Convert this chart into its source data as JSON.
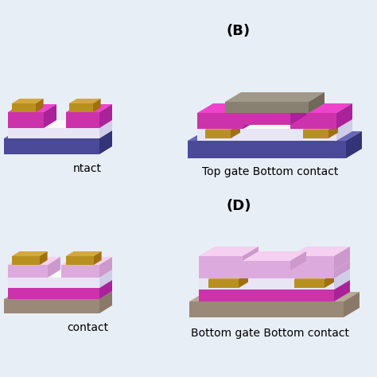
{
  "bg_color": "#e8eef5",
  "title_B": "(B)",
  "title_D": "(D)",
  "label_B": "Top gate Bottom contact",
  "label_D": "Bottom gate Bottom contact",
  "label_A_partial": "ntact",
  "label_C_partial": "contact",
  "colors": {
    "purple_front": "#4a4a99",
    "purple_top": "#6666bb",
    "purple_side": "#333377",
    "magenta_front": "#cc33aa",
    "magenta_top": "#ee44cc",
    "magenta_side": "#aa2299",
    "white_front": "#e8e5f5",
    "white_top": "#fafaf8",
    "white_side": "#d0cde8",
    "gold_front": "#b89020",
    "gold_top": "#d4a840",
    "gold_side": "#a07010",
    "gray_front": "#888070",
    "gray_top": "#a09888",
    "gray_side": "#706858",
    "tan_front": "#9a8878",
    "tan_top": "#b8a898",
    "tan_side": "#8a7868",
    "pink_front": "#ddaadd",
    "pink_top": "#f5d0f0",
    "pink_side": "#cc99cc"
  }
}
